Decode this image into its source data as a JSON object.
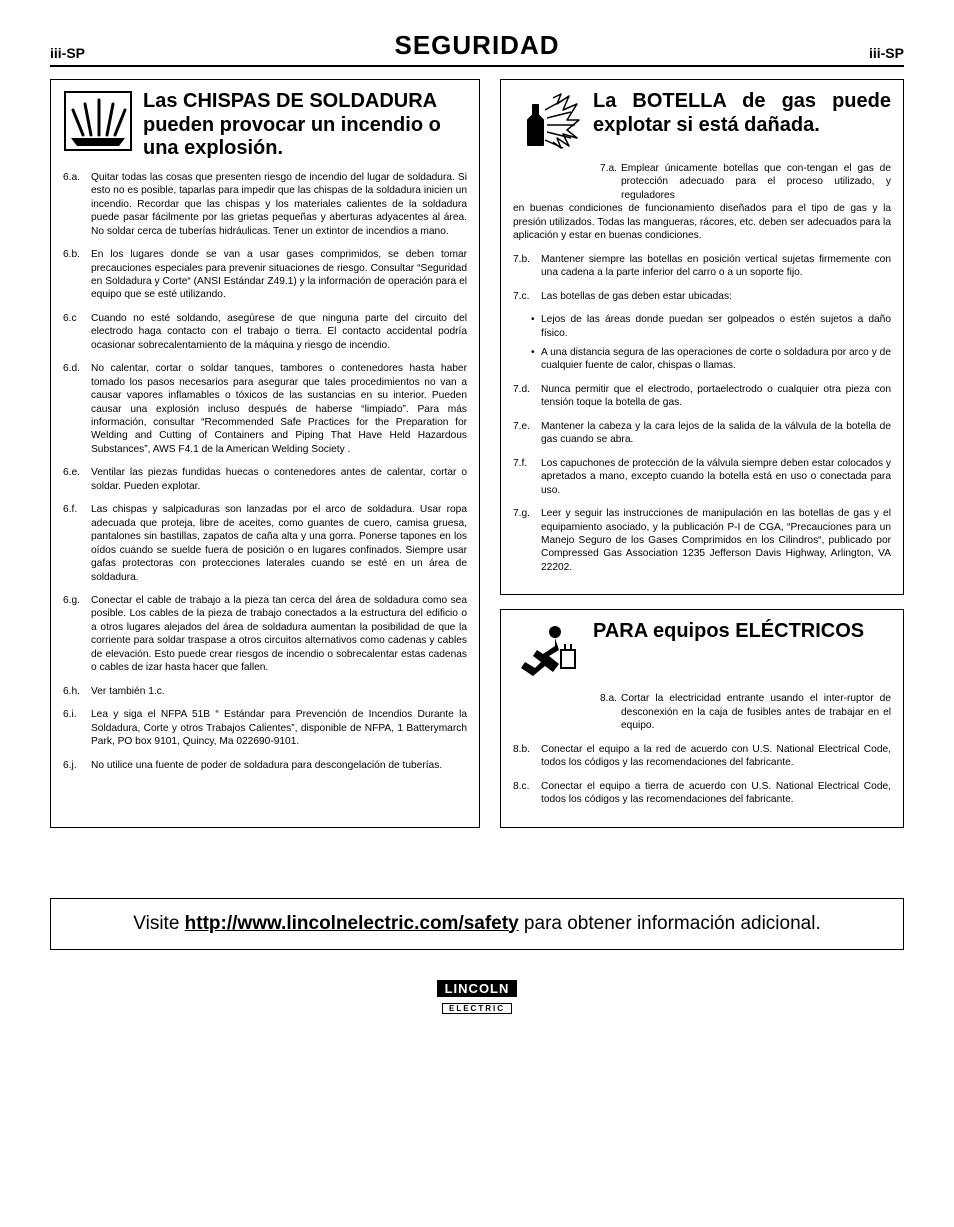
{
  "header": {
    "left": "iii-SP",
    "title": "SEGURIDAD",
    "right": "iii-SP"
  },
  "left_col": {
    "title": "Las CHISPAS DE SOLDADURA pueden provocar un incendio o una explosión.",
    "items": [
      {
        "label": "6.a.",
        "text": "Quitar todas las cosas que presenten riesgo de incendio del lugar de soldadura. Si esto no es posible, taparlas para impedir que las chispas de la soldadura inicien un incendio. Recordar que las chispas y los materiales calientes de la soldadura puede pasar fácilmente por las grietas pequeñas y aberturas adyacentes al área. No soldar cerca de tuberías hidráulicas. Tener un extintor de incendios a mano."
      },
      {
        "label": "6.b.",
        "text": "En los lugares donde se van a usar gases comprimidos, se deben tomar precauciones especiales para prevenir situaciones de riesgo. Consultar “Seguridad en Soldadura y Corte“ (ANSI Estándar Z49.1) y la información de operación para el equipo que se esté utilizando."
      },
      {
        "label": "6.c",
        "text": "Cuando no esté soldando, asegúrese de que ninguna parte del circuito del electrodo haga contacto con el trabajo o tierra. El contacto accidental podría ocasionar sobrecalentamiento de la máquina y  riesgo de incendio."
      },
      {
        "label": "6.d.",
        "text": "No calentar, cortar o soldar tanques, tambores o contenedores hasta haber tomado los pasos necesarios para asegurar que tales procedimientos no van a causar vapores inflamables o tóxicos de las sustancias en su interior. Pueden causar una explosión incluso después de haberse “limpiado”. Para más información, consultar “Recommended Safe Practices for the Preparation for Welding and Cutting of Containers and Piping That Have Held Hazardous Substances”, AWS F4.1 de la American Welding Society ."
      },
      {
        "label": "6.e.",
        "text": "Ventilar las piezas fundidas huecas o contenedores antes de calentar, cortar o soldar. Pueden explotar."
      },
      {
        "label": "6.f.",
        "text": "Las chispas y salpicaduras son lanzadas por el arco de soldadura. Usar ropa adecuada que proteja, libre de aceites, como guantes de cuero, camisa gruesa, pantalones sin bastillas, zapatos de caña alta y una gorra. Ponerse tapones en los oídos cuando se suelde fuera de posición o en lugares confinados. Siempre usar gafas protectoras con protecciones laterales cuando se esté en un área de soldadura."
      },
      {
        "label": "6.g.",
        "text": "Conectar el cable de trabajo a la pieza tan cerca del área de soldadura como sea posible. Los cables de la pieza de trabajo conectados a la estructura del edificio o a otros lugares alejados del área de soldadura aumentan la posibilidad de que la corriente para soldar traspase a otros circuitos alternativos como cadenas y cables de elevación. Esto puede crear riesgos de incendio o sobrecalentar estas cadenas o cables de izar hasta hacer que fallen."
      },
      {
        "label": "6.h.",
        "text": "Ver también 1.c."
      },
      {
        "label": "6.i.",
        "text": "Lea y siga el NFPA 51B “ Estándar para Prevención de Incendios Durante la Soldadura, Corte y otros Trabajos Calientes”, disponible de NFPA, 1 Batterymarch Park, PO box 9101, Quincy, Ma 022690-9101."
      },
      {
        "label": "6.j.",
        "text": "No utilice una fuente de poder de soldadura para descongelación de tuberías."
      }
    ]
  },
  "right_top": {
    "title": "La BOTELLA de gas puede explotar si está dañada.",
    "lead_label": "7.a.",
    "lead_first": "Emplear únicamente botellas que con-tengan el gas de protección adecuado para el proceso utilizado, y reguladores",
    "lead_rest": "en buenas condiciones de funcionamiento diseñados para el tipo de gas y la presión utilizados.  Todas las mangueras, rácores, etc. deben ser adecuados para la aplicación y estar en buenas condiciones.",
    "items": [
      {
        "label": "7.b.",
        "text": "Mantener siempre las botellas en posición vertical sujetas firmemente con una cadena a la parte inferior del carro o a un soporte fijo."
      },
      {
        "label": "7.c.",
        "text": "Las botellas de gas deben estar ubicadas:"
      }
    ],
    "subs": [
      "Lejos de las áreas donde puedan ser golpeados o estén sujetos a daño físico.",
      "A una distancia segura de las operaciones de corte o soldadura por arco y de cualquier fuente de calor, chispas o llamas."
    ],
    "items2": [
      {
        "label": "7.d.",
        "text": "Nunca permitir que el electrodo, portaelectrodo o cualquier otra pieza con tensión toque la botella de gas."
      },
      {
        "label": "7.e.",
        "text": "Mantener la cabeza y la cara lejos de la salida de la válvula de la botella de gas cuando se abra."
      },
      {
        "label": "7.f.",
        "text": "Los capuchones de protección de la válvula siempre deben estar colocados y apretados a mano, excepto cuando la botella está en uso o conectada para uso."
      },
      {
        "label": "7.g.",
        "text": "Leer y seguir las instrucciones de manipulación en las botellas de gas y el equipamiento asociado, y la publicación P-I de CGA, “Precauciones para un Manejo Seguro de los Gases Comprimidos en los Cilindros“, publicado por Compressed Gas Association 1235 Jefferson Davis Highway, Arlington, VA 22202."
      }
    ]
  },
  "right_bottom": {
    "title": "PARA equipos ELÉCTRICOS",
    "lead_label": "8.a.",
    "lead_first": "Cortar la electricidad entrante usando el inter-ruptor de desconexión en la caja de fusibles antes de trabajar en el equipo.",
    "items": [
      {
        "label": "8.b.",
        "text": "Conectar el equipo a la red de acuerdo con U.S. National Electrical Code, todos los códigos y las recomendaciones del fabricante."
      },
      {
        "label": "8.c.",
        "text": "Conectar el equipo a tierra de acuerdo con U.S. National Electrical Code, todos los códigos y las recomendaciones del fabricante."
      }
    ]
  },
  "footer": {
    "prefix": "Visite ",
    "url": "http://www.lincolnelectric.com/safety",
    "suffix": " para obtener información adicional."
  },
  "logo": {
    "main": "LINCOLN",
    "sub": "ELECTRIC"
  }
}
